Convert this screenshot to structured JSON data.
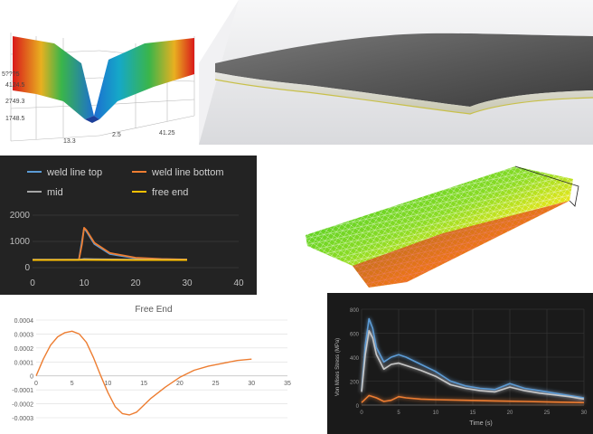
{
  "surface_plot": {
    "z_ticks": [
      "5???5",
      "4124.5",
      "2749.3",
      "1748.5"
    ],
    "x_ticks": [
      "13.3",
      "2.5",
      "41.25"
    ],
    "colors": [
      "#d91a1a",
      "#e8b020",
      "#3ab54a",
      "#1c6fd0",
      "#15a8c8"
    ]
  },
  "weld_chart": {
    "chart_data": {
      "type": "line",
      "xlabel": "",
      "ylabel": "",
      "xlim": [
        0,
        40
      ],
      "ylim": [
        0,
        2000
      ],
      "x_ticks": [
        "0",
        "10",
        "20",
        "30",
        "40"
      ],
      "y_ticks": [
        "0",
        "1000",
        "2000"
      ],
      "legend_position": "top",
      "grid": true,
      "series": [
        {
          "name": "weld line top",
          "color": "#5b9bd5",
          "x": [
            0,
            9,
            10,
            10.5,
            12,
            15,
            20,
            25,
            30
          ],
          "y": [
            300,
            300,
            1500,
            1380,
            900,
            520,
            360,
            320,
            300
          ]
        },
        {
          "name": "weld line bottom",
          "color": "#ed7d31",
          "x": [
            0,
            9,
            9.6,
            10,
            10.5,
            12,
            15,
            20,
            25,
            30
          ],
          "y": [
            300,
            300,
            900,
            1520,
            1420,
            950,
            560,
            380,
            330,
            310
          ]
        },
        {
          "name": "mid",
          "color": "#a5a5a5",
          "x": [
            0,
            9,
            10,
            12,
            20,
            30
          ],
          "y": [
            300,
            300,
            330,
            320,
            305,
            300
          ]
        },
        {
          "name": "free end",
          "color": "#ffc000",
          "x": [
            0,
            10,
            20,
            30
          ],
          "y": [
            290,
            292,
            291,
            290
          ]
        }
      ]
    }
  },
  "free_end_chart": {
    "chart_data": {
      "type": "line",
      "title": "Free End",
      "xlabel": "",
      "ylabel": "",
      "xlim": [
        0,
        35
      ],
      "ylim": [
        -0.0003,
        0.0004
      ],
      "x_ticks": [
        "0",
        "5",
        "10",
        "15",
        "20",
        "25",
        "30",
        "35"
      ],
      "y_ticks": [
        "0.0004",
        "0.0003",
        "0.0002",
        "0.0001",
        "0",
        "-0.0001",
        "-0.0002",
        "-0.0003"
      ],
      "grid": true,
      "series": [
        {
          "color": "#ed7d31",
          "x": [
            0,
            1,
            2,
            3,
            4,
            5,
            6,
            7,
            8,
            9,
            10,
            11,
            12,
            13,
            14,
            15,
            16,
            18,
            20,
            22,
            24,
            26,
            28,
            30
          ],
          "y": [
            0,
            0.00012,
            0.00022,
            0.00028,
            0.00031,
            0.00032,
            0.0003,
            0.00024,
            0.00013,
            0.0,
            -0.00012,
            -0.00022,
            -0.00027,
            -0.00028,
            -0.00026,
            -0.00021,
            -0.00016,
            -8e-05,
            -1e-05,
            4e-05,
            7e-05,
            9e-05,
            0.00011,
            0.00012
          ]
        }
      ]
    }
  },
  "stress_chart": {
    "chart_data": {
      "type": "line",
      "xlabel": "Time (s)",
      "ylabel": "Von Mises Stress (MPa)",
      "xlim": [
        0,
        30
      ],
      "ylim": [
        0,
        800
      ],
      "x_ticks": [
        "0",
        "5",
        "10",
        "15",
        "20",
        "25",
        "30"
      ],
      "y_ticks": [
        "800",
        "600",
        "400",
        "200",
        "0"
      ],
      "grid": true,
      "series": [
        {
          "color": "#5b9bd5",
          "x": [
            0,
            0.5,
            1,
            1.5,
            2,
            3,
            4,
            5,
            6,
            8,
            10,
            12,
            14,
            16,
            18,
            20,
            22,
            24,
            26,
            28,
            30
          ],
          "y": [
            120,
            500,
            720,
            640,
            480,
            360,
            400,
            420,
            400,
            340,
            280,
            200,
            160,
            140,
            130,
            180,
            140,
            120,
            100,
            80,
            60
          ]
        },
        {
          "color": "#c8c8c8",
          "x": [
            0,
            0.5,
            1,
            1.5,
            2,
            3,
            4,
            5,
            6,
            8,
            10,
            12,
            14,
            16,
            18,
            20,
            22,
            24,
            26,
            28,
            30
          ],
          "y": [
            110,
            420,
            620,
            560,
            420,
            300,
            340,
            350,
            330,
            290,
            240,
            170,
            140,
            120,
            110,
            150,
            120,
            100,
            85,
            70,
            50
          ]
        },
        {
          "color": "#ed7d31",
          "x": [
            0,
            1,
            2,
            3,
            4,
            5,
            6,
            8,
            10,
            14,
            18,
            22,
            26,
            30
          ],
          "y": [
            20,
            80,
            60,
            30,
            40,
            70,
            60,
            50,
            45,
            40,
            35,
            30,
            25,
            20
          ]
        }
      ]
    }
  }
}
